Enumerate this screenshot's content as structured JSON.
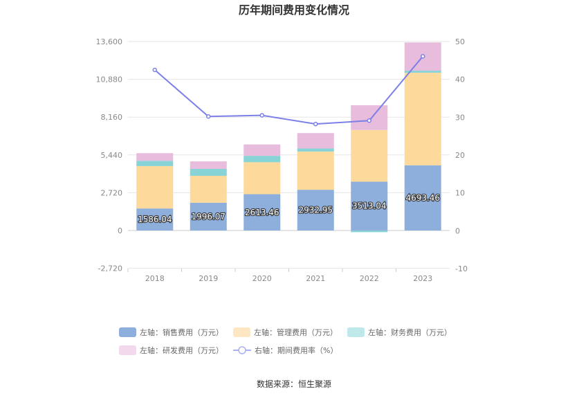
{
  "chart_data": {
    "type": "bar",
    "title": "历年期间费用变化情况",
    "categories": [
      "2018",
      "2019",
      "2020",
      "2021",
      "2022",
      "2023"
    ],
    "stacked": true,
    "left_axis": {
      "range": [
        -2720,
        13600
      ],
      "ticks": [
        "-2,720",
        "0",
        "2,720",
        "5,440",
        "8,160",
        "10,880",
        "13,600"
      ],
      "tick_values": [
        -2720,
        0,
        2720,
        5440,
        8160,
        10880,
        13600
      ]
    },
    "right_axis": {
      "range": [
        -10,
        50
      ],
      "ticks": [
        "-10",
        "0",
        "10",
        "20",
        "30",
        "40",
        "50"
      ],
      "tick_values": [
        -10,
        0,
        10,
        20,
        30,
        40,
        50
      ]
    },
    "series": [
      {
        "name": "左轴：销售费用（万元）",
        "axis": "left",
        "type": "bar",
        "color": "#8eaedb",
        "values": [
          1586.04,
          1996.07,
          2613.46,
          2932.95,
          3513.04,
          4693.46
        ],
        "labels": [
          "1586.04",
          "1996.07",
          "2613.46",
          "2932.95",
          "3513.04",
          "4693.46"
        ]
      },
      {
        "name": "左轴：管理费用（万元）",
        "axis": "left",
        "type": "bar",
        "color": "#fdd99b",
        "values": [
          3050,
          1940,
          2300,
          2750,
          3720,
          6660
        ]
      },
      {
        "name": "左轴：财务费用（万元）",
        "axis": "left",
        "type": "bar",
        "color": "#87d3d6",
        "values": [
          380,
          500,
          460,
          220,
          -120,
          150
        ]
      },
      {
        "name": "左轴：研发费用（万元）",
        "axis": "left",
        "type": "bar",
        "color": "#e7bcdd",
        "values": [
          550,
          540,
          820,
          1110,
          1780,
          2030
        ]
      },
      {
        "name": "右轴：期间费用率（%）",
        "axis": "right",
        "type": "line",
        "color": "#7c7fe8",
        "values": [
          42.5,
          30.2,
          30.5,
          28.2,
          29.1,
          46.1
        ]
      }
    ],
    "legend_position": "bottom",
    "grid": true
  },
  "footer": {
    "source": "数据来源：恒生聚源"
  }
}
